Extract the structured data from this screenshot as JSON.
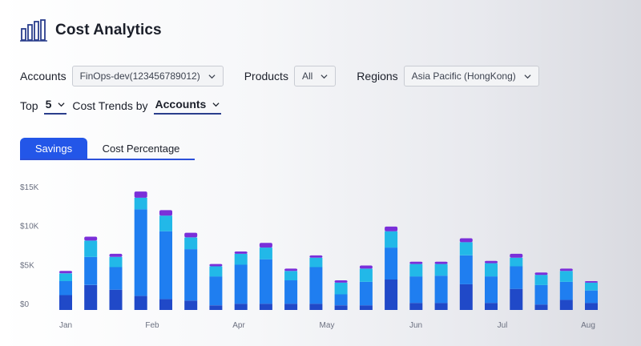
{
  "header": {
    "title": "Cost Analytics",
    "icon": "bar-chart-icon"
  },
  "filters": {
    "accounts_label": "Accounts",
    "accounts_value": "FinOps-dev(123456789012)",
    "products_label": "Products",
    "products_value": "All",
    "regions_label": "Regions",
    "regions_value": "Asia Pacific (HongKong)"
  },
  "trend": {
    "top_label": "Top",
    "top_value": "5",
    "trend_label": "Cost Trends by",
    "trend_value": "Accounts"
  },
  "tabs": [
    {
      "label": "Savings",
      "active": true
    },
    {
      "label": "Cost Percentage",
      "active": false
    }
  ],
  "colors": {
    "purple": "#7a2fd9",
    "cyan": "#22b8e8",
    "blue": "#1f7ef0",
    "deep": "#2049c8",
    "accent": "#2356e8"
  },
  "chart_data": {
    "type": "bar",
    "stacked": true,
    "y_ticks": [
      "$0",
      "$5K",
      "$10K",
      "$15K"
    ],
    "ylim": [
      0,
      16000
    ],
    "x_ticks": [
      "Jan",
      "Feb",
      "Apr",
      "May",
      "Jun",
      "Jul",
      "Aug"
    ],
    "totals": [
      5000,
      9400,
      7200,
      15200,
      12800,
      9900,
      5900,
      7500,
      8600,
      5300,
      7000,
      3800,
      5700,
      10700,
      6200,
      6200,
      9200,
      6300,
      7200,
      4800,
      5300,
      3700
    ],
    "segments": [
      {
        "name": "deep",
        "values": [
          1900,
          3200,
          2600,
          1800,
          1400,
          1200,
          600,
          800,
          800,
          800,
          800,
          600,
          600,
          3900,
          900,
          900,
          3300,
          900,
          2700,
          700,
          1300,
          900
        ]
      },
      {
        "name": "blue",
        "values": [
          1800,
          3600,
          2900,
          11100,
          8700,
          6600,
          3700,
          5000,
          5700,
          3000,
          4700,
          1400,
          3000,
          4100,
          3400,
          3500,
          3700,
          3400,
          2900,
          2500,
          2300,
          1600
        ]
      },
      {
        "name": "cyan",
        "values": [
          1000,
          2100,
          1300,
          1500,
          2000,
          1500,
          1300,
          1400,
          1500,
          1200,
          1200,
          1500,
          1700,
          2100,
          1600,
          1500,
          1700,
          1700,
          1100,
          1300,
          1400,
          1000
        ]
      },
      {
        "name": "purple",
        "values": [
          300,
          500,
          400,
          800,
          700,
          600,
          300,
          300,
          600,
          300,
          300,
          300,
          400,
          600,
          300,
          300,
          500,
          300,
          500,
          300,
          300,
          200
        ]
      }
    ]
  }
}
